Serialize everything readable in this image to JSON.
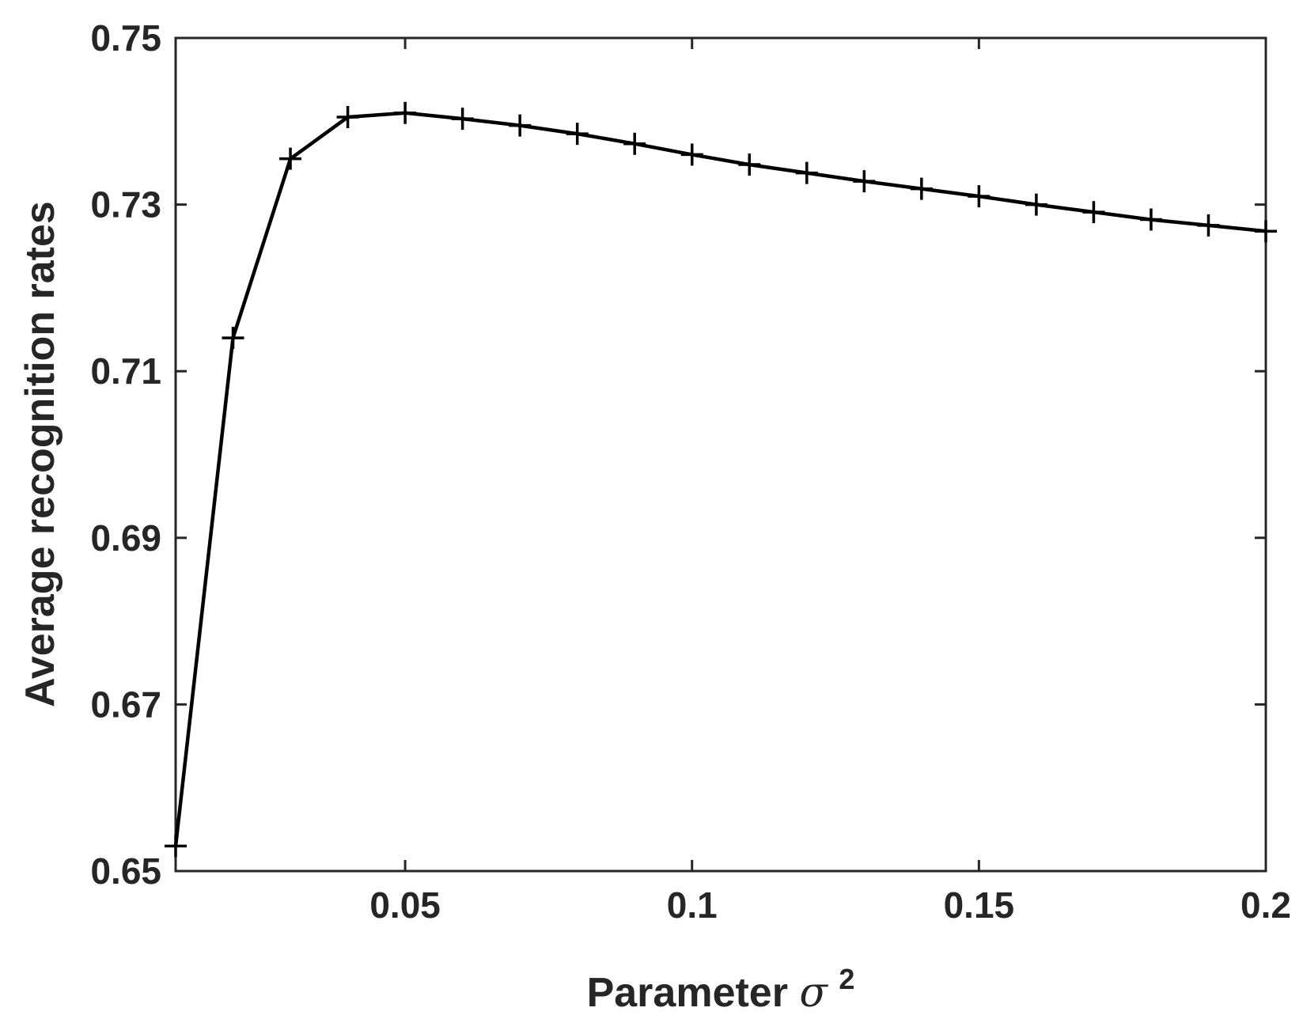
{
  "chart_data": {
    "type": "line",
    "xlabel": "Parameter",
    "xlabel_symbol": "σ",
    "xlabel_superscript": "2",
    "ylabel": "Average recognition rates",
    "xlim": [
      0.01,
      0.2
    ],
    "ylim": [
      0.65,
      0.75
    ],
    "x_ticks": [
      0.05,
      0.1,
      0.15,
      0.2
    ],
    "x_tick_labels": [
      "0.05",
      "0.1",
      "0.15",
      "0.2"
    ],
    "y_ticks": [
      0.65,
      0.67,
      0.69,
      0.71,
      0.73,
      0.75
    ],
    "y_tick_labels": [
      "0.65",
      "0.67",
      "0.69",
      "0.71",
      "0.73",
      "0.75"
    ],
    "grid": false,
    "marker": "+",
    "color": "#000000",
    "series": [
      {
        "x": [
          0.01,
          0.02,
          0.03,
          0.04,
          0.05,
          0.06,
          0.07,
          0.08,
          0.09,
          0.1,
          0.11,
          0.12,
          0.13,
          0.14,
          0.15,
          0.16,
          0.17,
          0.18,
          0.19,
          0.2
        ],
        "values": [
          0.653,
          0.714,
          0.7355,
          0.7405,
          0.741,
          0.7403,
          0.7395,
          0.7385,
          0.7373,
          0.736,
          0.7348,
          0.7338,
          0.7328,
          0.7319,
          0.731,
          0.73,
          0.7291,
          0.7282,
          0.7275,
          0.7268
        ]
      }
    ]
  }
}
